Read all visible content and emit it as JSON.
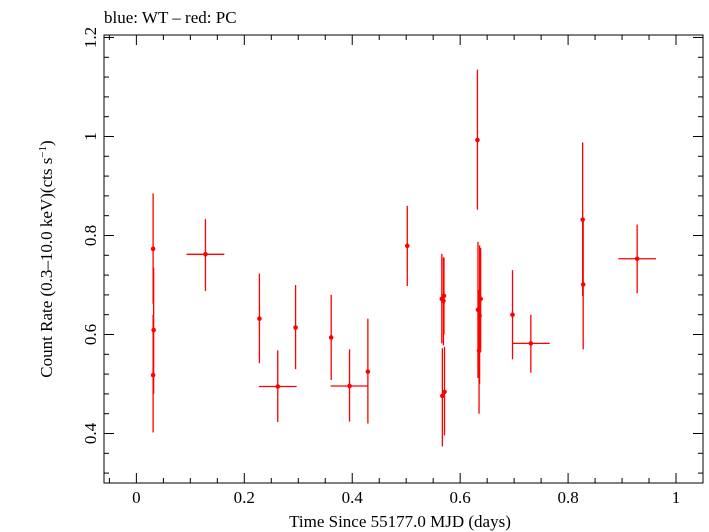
{
  "chart_data": {
    "type": "scatter",
    "title": "blue: WT – red: PC",
    "xlabel": "Time Since 55177.0 MJD (days)",
    "ylabel_parts": [
      "Count Rate (0.3–10.0 keV)(cts s",
      "−1",
      ")"
    ],
    "xlim": [
      -0.06,
      1.05
    ],
    "ylim": [
      0.3,
      1.205
    ],
    "x_ticks": [
      0,
      0.2,
      0.4,
      0.6,
      0.8,
      1
    ],
    "x_tick_labels": [
      "0",
      "0.2",
      "0.4",
      "0.6",
      "0.8",
      "1"
    ],
    "y_ticks": [
      0.4,
      0.6,
      0.8,
      1,
      1.2
    ],
    "y_tick_labels": [
      "0.4",
      "0.6",
      "0.8",
      "1",
      "1.2"
    ],
    "series": [
      {
        "color": "#ff0000",
        "points": [
          {
            "x": 0.031,
            "y": 0.773,
            "xerr": 0.0,
            "ylo": 0.662,
            "yhi": 0.885
          },
          {
            "x": 0.032,
            "y": 0.609,
            "xerr": 0.0,
            "ylo": 0.48,
            "yhi": 0.735
          },
          {
            "x": 0.031,
            "y": 0.518,
            "xerr": 0.0,
            "ylo": 0.402,
            "yhi": 0.64
          },
          {
            "x": 0.128,
            "y": 0.762,
            "xerr": 0.035,
            "ylo": 0.688,
            "yhi": 0.833
          },
          {
            "x": 0.228,
            "y": 0.632,
            "xerr": 0.0,
            "ylo": 0.542,
            "yhi": 0.723
          },
          {
            "x": 0.262,
            "y": 0.495,
            "xerr": 0.035,
            "ylo": 0.423,
            "yhi": 0.568
          },
          {
            "x": 0.295,
            "y": 0.614,
            "xerr": 0.0,
            "ylo": 0.53,
            "yhi": 0.7
          },
          {
            "x": 0.361,
            "y": 0.594,
            "xerr": 0.0,
            "ylo": 0.508,
            "yhi": 0.68
          },
          {
            "x": 0.395,
            "y": 0.496,
            "xerr": 0.035,
            "ylo": 0.424,
            "yhi": 0.57
          },
          {
            "x": 0.429,
            "y": 0.525,
            "xerr": 0.0,
            "ylo": 0.42,
            "yhi": 0.632
          },
          {
            "x": 0.502,
            "y": 0.779,
            "xerr": 0.0,
            "ylo": 0.698,
            "yhi": 0.86
          },
          {
            "x": 0.566,
            "y": 0.672,
            "xerr": 0.0,
            "ylo": 0.582,
            "yhi": 0.763
          },
          {
            "x": 0.567,
            "y": 0.476,
            "xerr": 0.0,
            "ylo": 0.374,
            "yhi": 0.572
          },
          {
            "x": 0.569,
            "y": 0.668,
            "xerr": 0.0,
            "ylo": 0.578,
            "yhi": 0.756
          },
          {
            "x": 0.57,
            "y": 0.678,
            "xerr": 0.0,
            "ylo": 0.6,
            "yhi": 0.755
          },
          {
            "x": 0.571,
            "y": 0.484,
            "xerr": 0.0,
            "ylo": 0.396,
            "yhi": 0.575
          },
          {
            "x": 0.632,
            "y": 0.993,
            "xerr": 0.0,
            "ylo": 0.852,
            "yhi": 1.135
          },
          {
            "x": 0.633,
            "y": 0.65,
            "xerr": 0.0,
            "ylo": 0.512,
            "yhi": 0.787
          },
          {
            "x": 0.635,
            "y": 0.567,
            "xerr": 0.0,
            "ylo": 0.44,
            "yhi": 0.69
          },
          {
            "x": 0.636,
            "y": 0.638,
            "xerr": 0.0,
            "ylo": 0.5,
            "yhi": 0.78
          },
          {
            "x": 0.638,
            "y": 0.672,
            "xerr": 0.0,
            "ylo": 0.57,
            "yhi": 0.775
          },
          {
            "x": 0.697,
            "y": 0.64,
            "xerr": 0.0,
            "ylo": 0.55,
            "yhi": 0.73
          },
          {
            "x": 0.731,
            "y": 0.582,
            "xerr": 0.035,
            "ylo": 0.523,
            "yhi": 0.64
          },
          {
            "x": 0.827,
            "y": 0.832,
            "xerr": 0.0,
            "ylo": 0.678,
            "yhi": 0.988
          },
          {
            "x": 0.828,
            "y": 0.701,
            "xerr": 0.0,
            "ylo": 0.57,
            "yhi": 0.83
          },
          {
            "x": 0.928,
            "y": 0.753,
            "xerr": 0.035,
            "ylo": 0.683,
            "yhi": 0.822
          }
        ]
      }
    ]
  }
}
